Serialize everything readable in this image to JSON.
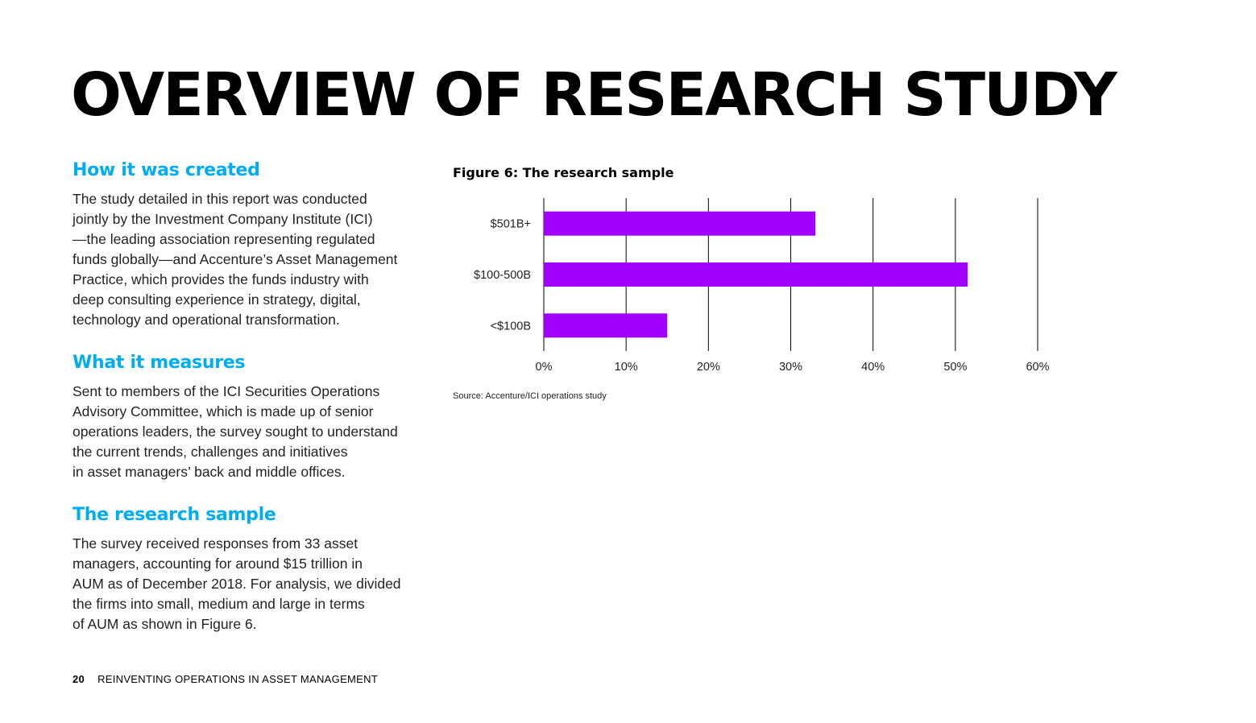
{
  "title": "OVERVIEW OF RESEARCH STUDY",
  "sections": [
    {
      "heading": "How it was created",
      "body": "The study detailed in this report was conducted\njointly by the Investment Company Institute (ICI)\n—the leading association representing regulated\nfunds globally—and Accenture’s Asset Management\nPractice, which provides the funds industry with\ndeep consulting experience in strategy, digital,\ntechnology and operational transformation."
    },
    {
      "heading": "What it measures",
      "body": "Sent to members of the ICI Securities Operations\nAdvisory Committee, which is made up of senior\noperations leaders, the survey sought to understand\nthe current trends, challenges and initiatives\nin asset managers’ back and middle offices."
    },
    {
      "heading": "The research sample",
      "body": "The survey received responses from 33 asset\nmanagers, accounting for around $15 trillion in\nAUM as of December 2018. For analysis, we divided\nthe firms into small, medium and large in terms\nof AUM as shown in Figure 6."
    }
  ],
  "figure": {
    "title": "Figure 6: The research sample",
    "source": "Source: Accenture/ICI operations study"
  },
  "chart_data": {
    "type": "bar",
    "orientation": "horizontal",
    "categories": [
      "$501B+",
      "$100-500B",
      "<$100B"
    ],
    "values": [
      33,
      51.5,
      15
    ],
    "value_unit": "%",
    "xlim": [
      0,
      60
    ],
    "xticks": [
      "0%",
      "10%",
      "20%",
      "30%",
      "40%",
      "50%",
      "60%"
    ],
    "xtick_values": [
      0,
      10,
      20,
      30,
      40,
      50,
      60
    ],
    "grid": "vertical",
    "bar_color": "#a100ff"
  },
  "footer": {
    "page_number": "20",
    "publication": "REINVENTING OPERATIONS IN ASSET MANAGEMENT"
  }
}
